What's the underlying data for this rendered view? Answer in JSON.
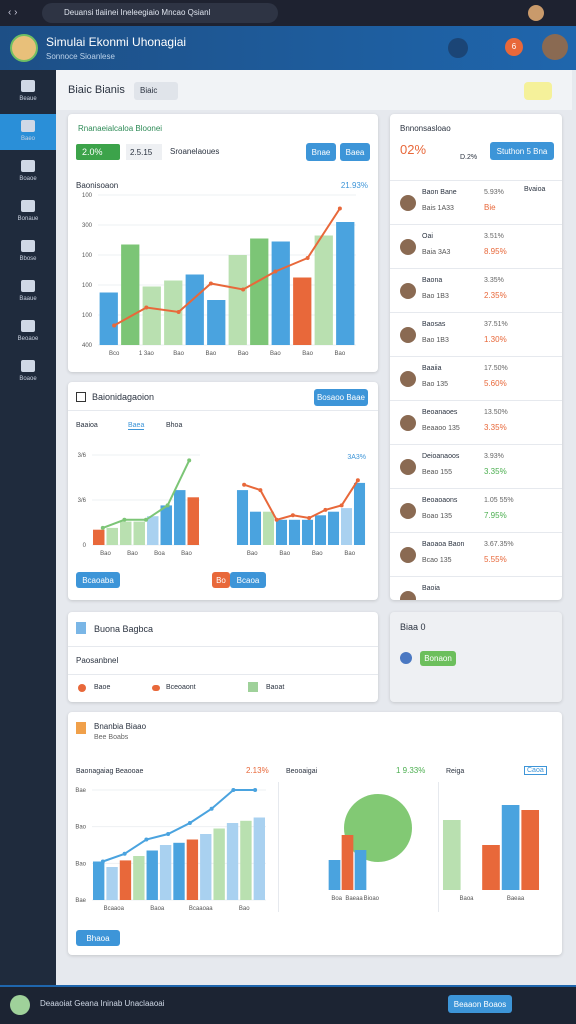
{
  "browser": {
    "url": "Deuansi tlaiinei Ineleegiaio Mncao Qsianl"
  },
  "header": {
    "title": "Simulai Ekonmi Uhonagiai",
    "subtitle": "Sonnoce Sioanlese",
    "badge": "6"
  },
  "sidebar": {
    "items": [
      "Beaue",
      "Baeo",
      "Boaoe",
      "Bonaue",
      "Bbose",
      "Baaue",
      "Beoaoe",
      "Boaoe"
    ]
  },
  "toolbar": {
    "title": "Biaic Bianis",
    "select": "Biaic"
  },
  "main_card": {
    "title": "Rnanaeialcaloa Bloonei",
    "badge": "2.0%",
    "date": "2.5.15",
    "note": "Sroanelaoues",
    "buttons": [
      "Bnae",
      "Baea"
    ],
    "chart": {
      "title": "Baonisoaon",
      "value": "21.93%",
      "ylim": [
        0,
        100
      ],
      "y_labels": [
        "100",
        "300",
        "100",
        "100",
        "100",
        "400"
      ],
      "x_labels": [
        "Bco",
        "1 3ao",
        "Bao",
        "Bao",
        "Bao",
        "Bao",
        "Bao",
        "Bao"
      ],
      "bars": {
        "values": [
          35,
          67,
          39,
          43,
          47,
          30,
          60,
          71,
          69,
          45,
          73,
          82
        ],
        "colors": [
          "#4aa3df",
          "#7cc576",
          "#b9e0b0",
          "#b9e0b0",
          "#4aa3df",
          "#4aa3df",
          "#b9e0b0",
          "#7cc576",
          "#4aa3df",
          "#e8683a",
          "#b9e0b0",
          "#4aa3df"
        ]
      },
      "line": {
        "values": [
          13,
          25,
          22,
          41,
          37,
          49,
          58,
          91
        ],
        "color": "#e8683a"
      }
    }
  },
  "list_card": {
    "title": "Bnnonsasloao",
    "value": "02%",
    "sub": "D.2%",
    "button": "Stuthon 5 Bna",
    "col": "Bvaioa",
    "rows": [
      {
        "name": "Baon Bane",
        "sub": "Bais 1A33",
        "a": "5.93%",
        "b": "Bie",
        "color": "#e8683a"
      },
      {
        "name": "Oai",
        "sub": "Baia 3A3",
        "a": "3.51%",
        "b": "8.95%",
        "color": "#e8683a"
      },
      {
        "name": "Baona",
        "sub": "Bao 1B3",
        "a": "3.35%",
        "b": "2.35%",
        "color": "#e8683a"
      },
      {
        "name": "Baosas",
        "sub": "Bao 1B3",
        "a": "37.51%",
        "b": "1.30%",
        "color": "#e8683a"
      },
      {
        "name": "Baaiia",
        "sub": "Bao 135",
        "a": "17.50%",
        "b": "5.60%",
        "color": "#e8683a"
      },
      {
        "name": "Beoanaoes",
        "sub": "Beaaoo 135",
        "a": "13.50%",
        "b": "3.35%",
        "color": "#e8683a"
      },
      {
        "name": "Deioanaoos",
        "sub": "Beao 155",
        "a": "3.93%",
        "b": "3.35%",
        "color": "#4caf50"
      },
      {
        "name": "Beoaoaons",
        "sub": "Boao 135",
        "a": "1.05 55%",
        "b": "7.95%",
        "color": "#4caf50"
      },
      {
        "name": "Baoaoa Baon",
        "sub": "Bcao 135",
        "a": "3.67.35%",
        "b": "5.55%",
        "color": "#e8683a"
      },
      {
        "name": "Baoia",
        "sub": "",
        "a": "",
        "b": "",
        "color": "#e8683a"
      }
    ]
  },
  "compare_card": {
    "title": "Baionidagaoion",
    "button": "Bosaoo Baae",
    "tabs": [
      "Baaioa",
      "Baea",
      "Bhoa"
    ],
    "buttons": [
      "Bcaoaba",
      "Bo",
      "Bcaoa"
    ],
    "left": {
      "ylim": [
        0,
        100
      ],
      "y_labels": [
        "3/6",
        "3/6",
        "0"
      ],
      "x_labels": [
        "Bao",
        "Bao",
        "Boa",
        "Bao"
      ],
      "bars": {
        "values": [
          17,
          19,
          26,
          26,
          32,
          44,
          61,
          53
        ],
        "colors": [
          "#e8683a",
          "#b9e0b0",
          "#b9e0b0",
          "#b9e0b0",
          "#a9d1f0",
          "#4aa3df",
          "#4aa3df",
          "#e8683a"
        ]
      },
      "line": {
        "values": [
          19,
          28,
          28,
          44,
          94
        ],
        "color": "#7cc576"
      }
    },
    "right": {
      "value": "3A3%",
      "ylim": [
        0,
        100
      ],
      "x_labels": [
        "Bao",
        "Bao",
        "Bao",
        "Bao"
      ],
      "bars": {
        "values": [
          61,
          37,
          37,
          28,
          28,
          28,
          33,
          37,
          41,
          69
        ],
        "colors": [
          "#4aa3df",
          "#4aa3df",
          "#b9e0b0",
          "#4aa3df",
          "#4aa3df",
          "#4aa3df",
          "#4aa3df",
          "#4aa3df",
          "#a9d1f0",
          "#4aa3df"
        ]
      },
      "line": {
        "values": [
          67,
          61,
          28,
          33,
          30,
          39,
          44,
          72
        ],
        "color": "#e8683a"
      }
    }
  },
  "filter_card": {
    "title": "Buona Bagbca",
    "select": "Paosanbnel",
    "items": [
      "Baoe",
      "Bceoaont",
      "Baoat"
    ]
  },
  "side_card": {
    "title": "Biaa 0",
    "button": "Bonaon"
  },
  "bottom_card": {
    "title": "Bnanbia Biaao",
    "sub": "Bee Boabs",
    "button": "Bhaoa",
    "a": {
      "title": "Baonagaiag Beaooae",
      "value": "2.13%",
      "ylim": [
        0,
        100
      ],
      "y_labels": [
        "Bae",
        "Bao",
        "Bao",
        "Bae"
      ],
      "x_labels": [
        "Bcaaoa",
        "Baoa",
        "Bcaaoaa",
        "Bao"
      ],
      "bars": {
        "values": [
          35,
          30,
          36,
          40,
          45,
          50,
          52,
          55,
          60,
          65,
          70,
          72,
          75
        ],
        "colors": [
          "#4aa3df",
          "#a9d1f0",
          "#e8683a",
          "#b9e0b0",
          "#4aa3df",
          "#a9d1f0",
          "#4aa3df",
          "#e8683a",
          "#a9d1f0",
          "#b9e0b0",
          "#a9d1f0",
          "#b9e0b0",
          "#a9d1f0"
        ]
      },
      "line": {
        "values": [
          35,
          42,
          55,
          60,
          70,
          83,
          100,
          100
        ],
        "color": "#4aa3df"
      }
    },
    "b": {
      "title": "Beooaigai",
      "value": "1 9.33%",
      "ylim": [
        0,
        100
      ],
      "x_labels": [
        "Boa",
        "Baeaa",
        "Bioao"
      ],
      "bars": {
        "values": [
          30,
          55,
          40,
          0
        ],
        "colors": [
          "#4aa3df",
          "#e8683a",
          "#4aa3df",
          "#fff"
        ]
      }
    },
    "c": {
      "title": "Reiga",
      "value": "Caoa",
      "ylim": [
        0,
        100
      ],
      "x_labels": [
        "Baoa",
        "Baeaa"
      ],
      "bars": {
        "values": [
          70,
          0,
          45,
          85,
          80
        ],
        "colors": [
          "#b9e0b0",
          "#fff",
          "#e8683a",
          "#4aa3df",
          "#e8683a"
        ]
      }
    }
  },
  "footer": {
    "text": "Deaaoiat Geana Ininab Unaclaaoai",
    "button": "Beaaon Boaos"
  }
}
